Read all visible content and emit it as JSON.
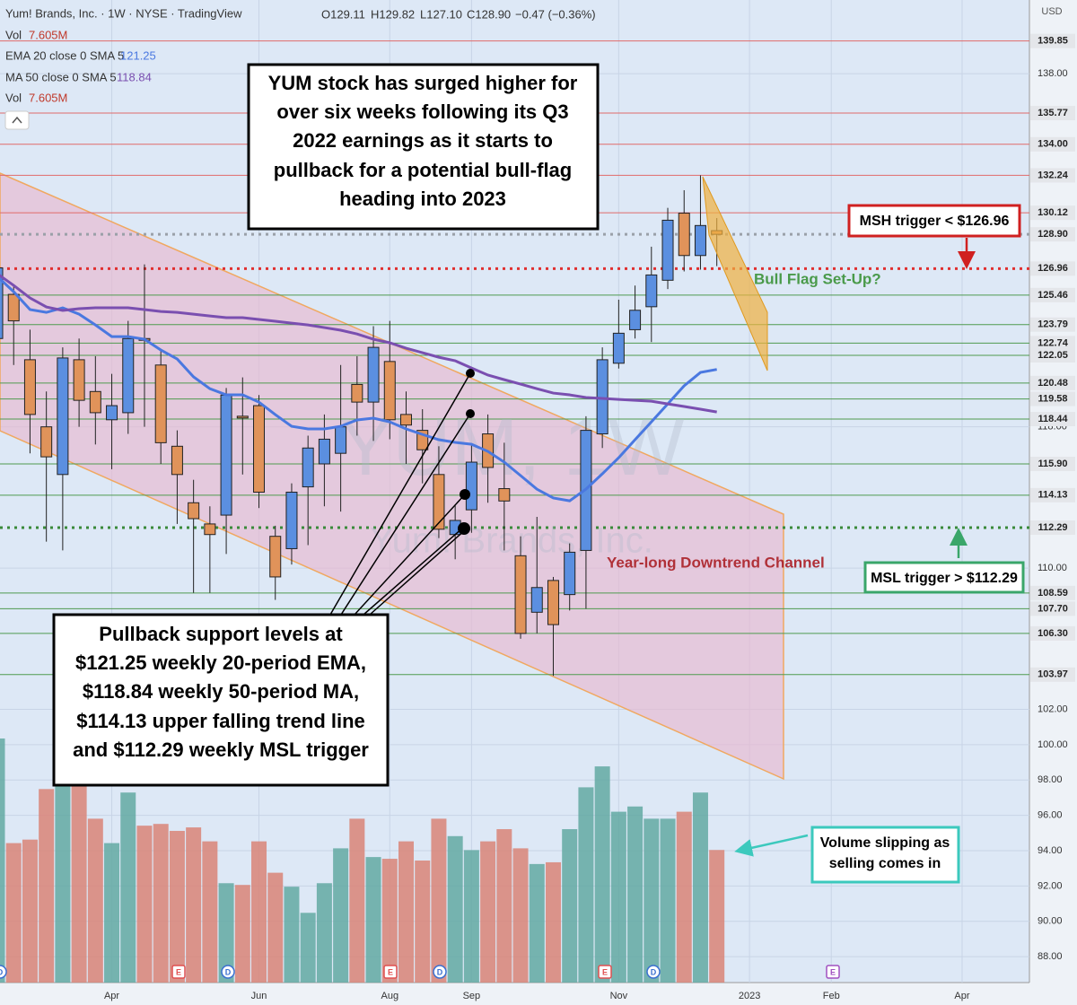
{
  "chart_data": {
    "type": "candlestick",
    "symbol": "Yum! Brands, Inc. · 1W · NYSE · TradingView",
    "ohlc_labels": [
      "O129.11",
      "H129.82",
      "L127.10",
      "C128.90"
    ],
    "change": "−0.47 (−0.36%)",
    "currency": "USD",
    "up_color": "#5b8fe0",
    "down_color": "#e0935a",
    "volume_up_color": "#63a9a2",
    "volume_down_color": "#d98477",
    "categories": [
      null,
      null,
      null,
      null,
      null,
      null,
      null,
      "Apr",
      null,
      null,
      null,
      null,
      null,
      null,
      null,
      null,
      "Jun",
      null,
      null,
      null,
      null,
      null,
      null,
      null,
      "Aug",
      null,
      null,
      null,
      null,
      "Sep",
      null,
      null,
      null,
      null,
      null,
      null,
      null,
      null,
      "Nov",
      null,
      null,
      null,
      null,
      null,
      null,
      null,
      "2023",
      null,
      null,
      null,
      null,
      "Feb",
      null,
      null,
      null,
      null,
      null,
      null,
      null,
      "Apr",
      null,
      null,
      null,
      null
    ],
    "open": [
      123,
      125.5,
      121.8,
      118,
      115.3,
      121.8,
      120,
      118.4,
      118.8,
      123,
      121.5,
      116.9,
      113.7,
      112.5,
      113,
      118.6,
      119.2,
      111.8,
      111.1,
      114.6,
      115.9,
      116.5,
      120.4,
      119.4,
      121.7,
      118.7,
      117.8,
      115.3,
      111.9,
      113.3,
      117.6,
      114.5,
      110.7,
      107.5,
      109.3,
      108.5,
      111,
      117.6,
      121.6,
      123.5,
      124.8,
      126.3,
      130.1,
      127.7,
      129.11,
      null,
      null,
      null,
      null,
      null,
      null,
      null,
      null,
      null,
      null,
      null,
      null,
      null,
      null,
      null,
      null,
      null,
      null,
      null
    ],
    "high": [
      127.5,
      126,
      123.5,
      120,
      122.5,
      123,
      122,
      121,
      124,
      127.2,
      122.3,
      117.8,
      115,
      113.5,
      120.2,
      120.8,
      119.8,
      112.4,
      114.8,
      117.5,
      118.7,
      121.5,
      122,
      123.7,
      124,
      120,
      119,
      116.9,
      113.6,
      117,
      118.7,
      117.1,
      111.8,
      112.9,
      109.5,
      111.4,
      118.6,
      122.5,
      125.2,
      126,
      128.2,
      130.4,
      131.4,
      132.24,
      129.82,
      null,
      null,
      null,
      null,
      null,
      null,
      null,
      null,
      null,
      null,
      null,
      null,
      null,
      null,
      null,
      null,
      null,
      null,
      null
    ],
    "low": [
      121,
      121.5,
      116.5,
      111.5,
      111,
      118,
      117,
      115.6,
      117.6,
      118,
      115.9,
      112.5,
      108.6,
      108.6,
      110.8,
      115.3,
      113.4,
      108.2,
      110.2,
      111.3,
      113.5,
      113.2,
      117.5,
      117.2,
      117.3,
      115.9,
      114.8,
      111.7,
      110.5,
      112,
      113.7,
      111,
      106,
      106.3,
      103.9,
      107.6,
      107.7,
      116.8,
      121.3,
      123,
      122.8,
      125.8,
      126.8,
      126.9,
      127.1,
      null,
      null,
      null,
      null,
      null,
      null,
      null,
      null,
      null,
      null,
      null,
      null,
      null,
      null,
      null,
      null,
      null,
      null,
      null
    ],
    "close": [
      127,
      124,
      118.7,
      116.3,
      121.9,
      119.5,
      118.8,
      119.2,
      123,
      122.9,
      117.1,
      115.3,
      112.8,
      111.9,
      119.8,
      118.5,
      114.3,
      109.5,
      114.3,
      116.8,
      117.3,
      118,
      119.4,
      122.5,
      118.4,
      118.1,
      116.7,
      112.2,
      112.7,
      116,
      115.7,
      113.8,
      106.3,
      108.9,
      106.8,
      110.9,
      117.8,
      121.8,
      123.3,
      124.6,
      126.6,
      129.7,
      127.7,
      129.4,
      128.9,
      null,
      null,
      null,
      null,
      null,
      null,
      null,
      null,
      null,
      null,
      null,
      null,
      null,
      null,
      null,
      null,
      null,
      null,
      null
    ],
    "volume_name": "Vol",
    "volume_label": "7.605M",
    "volume": [
      14.0,
      8.0,
      8.2,
      11.1,
      11.6,
      11.3,
      9.4,
      8.0,
      10.9,
      9.0,
      9.1,
      8.7,
      8.9,
      8.1,
      5.7,
      5.6,
      8.1,
      6.3,
      5.5,
      4.0,
      5.7,
      7.7,
      9.4,
      7.2,
      7.1,
      8.1,
      7.0,
      9.4,
      8.4,
      7.6,
      8.1,
      8.8,
      7.7,
      6.8,
      6.9,
      8.8,
      11.2,
      12.4,
      9.8,
      10.1,
      9.4,
      9.4,
      9.8,
      10.9,
      7.605,
      null,
      null,
      null,
      null,
      null,
      null,
      null,
      null,
      null,
      null,
      null,
      null,
      null,
      null,
      null,
      null,
      null,
      null,
      null
    ],
    "series": [
      {
        "name": "EMA 20 close 0 SMA 5",
        "color": "#4a78e0",
        "values": [
          126.52,
          125.65,
          124.64,
          124.48,
          124.74,
          124.38,
          123.77,
          123.11,
          123.11,
          122.96,
          122.35,
          121.84,
          120.83,
          120.16,
          119.81,
          119.81,
          119.4,
          118.69,
          118.03,
          117.88,
          117.88,
          118.03,
          118.39,
          118.49,
          118.28,
          117.88,
          117.57,
          117.27,
          117.12,
          117.01,
          116.61,
          116.0,
          115.24,
          114.47,
          113.97,
          113.81,
          114.47,
          115.34,
          116.25,
          117.27,
          118.28,
          119.3,
          120.32,
          121.08,
          121.25,
          null,
          null,
          null,
          null,
          null,
          null,
          null,
          null,
          null,
          null,
          null,
          null,
          null,
          null,
          null,
          null,
          null,
          null,
          null
        ]
      },
      {
        "name": "MA 50 close 0 SMA 5",
        "color": "#7a4fb0",
        "values": [
          126.67,
          126.01,
          125.3,
          124.79,
          124.59,
          124.69,
          124.74,
          124.74,
          124.74,
          124.64,
          124.53,
          124.48,
          124.38,
          124.28,
          124.18,
          124.18,
          124.08,
          123.98,
          123.87,
          123.77,
          123.62,
          123.47,
          123.26,
          122.96,
          122.76,
          122.45,
          122.2,
          121.94,
          121.74,
          121.33,
          120.93,
          120.67,
          120.42,
          120.16,
          119.91,
          119.81,
          119.66,
          119.61,
          119.55,
          119.5,
          119.45,
          119.3,
          119.15,
          119.0,
          118.84,
          null,
          null,
          null,
          null,
          null,
          null,
          null,
          null,
          null,
          null,
          null,
          null,
          null,
          null,
          null,
          null,
          null,
          null,
          null
        ]
      }
    ],
    "ylim": [
      86.53,
      142.17
    ],
    "yticks": [
      {
        "value": 138,
        "label": "138.00"
      },
      {
        "value": 118,
        "label": "118.00"
      },
      {
        "value": 110,
        "label": "110.00"
      },
      {
        "value": 102,
        "label": "102.00"
      },
      {
        "value": 100,
        "label": "100.00"
      },
      {
        "value": 98,
        "label": "98.00"
      },
      {
        "value": 96,
        "label": "96.00"
      },
      {
        "value": 94,
        "label": "94.00"
      },
      {
        "value": 92,
        "label": "92.00"
      },
      {
        "value": 90,
        "label": "90.00"
      },
      {
        "value": 88,
        "label": "88.00"
      }
    ],
    "grid": true,
    "levels": [
      {
        "value": 139.85,
        "color": "#e06a6a"
      },
      {
        "value": 135.77,
        "color": "#e06a6a"
      },
      {
        "value": 134,
        "label": "134.00",
        "color": "#e06a6a"
      },
      {
        "value": 132.24,
        "color": "#e06a6a"
      },
      {
        "value": 130.12,
        "color": "#e06a6a"
      },
      {
        "value": 128.9,
        "label": "128.90",
        "color": "#9aa0a8",
        "dotted": true
      },
      {
        "value": 126.96,
        "color": "#e03030",
        "dotted": true
      },
      {
        "value": 125.46,
        "color": "#4f9a4f"
      },
      {
        "value": 123.79,
        "color": "#4f9a4f"
      },
      {
        "value": 122.74,
        "color": "#4f9a4f"
      },
      {
        "value": 122.05,
        "color": "#4f9a4f"
      },
      {
        "value": 120.48,
        "color": "#4f9a4f"
      },
      {
        "value": 119.58,
        "color": "#4f9a4f"
      },
      {
        "value": 118.44,
        "color": "#4f9a4f"
      },
      {
        "value": 115.9,
        "label": "115.90",
        "color": "#4f9a4f"
      },
      {
        "value": 114.13,
        "color": "#4f9a4f"
      },
      {
        "value": 112.29,
        "color": "#3a8a3a",
        "dotted": true
      },
      {
        "value": 108.59,
        "color": "#4f9a4f"
      },
      {
        "value": 107.7,
        "label": "107.70",
        "color": "#4f9a4f"
      },
      {
        "value": 106.3,
        "label": "106.30",
        "color": "#4f9a4f"
      },
      {
        "value": 103.97,
        "color": "#4f9a4f"
      }
    ]
  },
  "watermark": [
    "YUM, 1W",
    "Yum! Brands, Inc."
  ],
  "annotations": {
    "headline": [
      "YUM stock has surged higher for",
      "over six weeks following its Q3",
      "2022 earnings as it starts to",
      "pullback for a potential bull-flag",
      "heading into 2023"
    ],
    "support": [
      "Pullback support levels at",
      "$121.25 weekly 20-period EMA,",
      "$118.84 weekly 50-period MA,",
      "$114.13 upper falling trend line",
      "and $112.29 weekly MSL trigger"
    ],
    "msh": "MSH trigger < $126.96",
    "msl": "MSL trigger > $112.29",
    "volume_note": [
      "Volume slipping as",
      "selling comes in"
    ],
    "flag": "Bull Flag Set-Up?",
    "channel": "Year-long Downtrend Channel"
  },
  "events": [
    "D",
    "E",
    "D",
    "E",
    "D",
    "E",
    "D",
    "E"
  ]
}
